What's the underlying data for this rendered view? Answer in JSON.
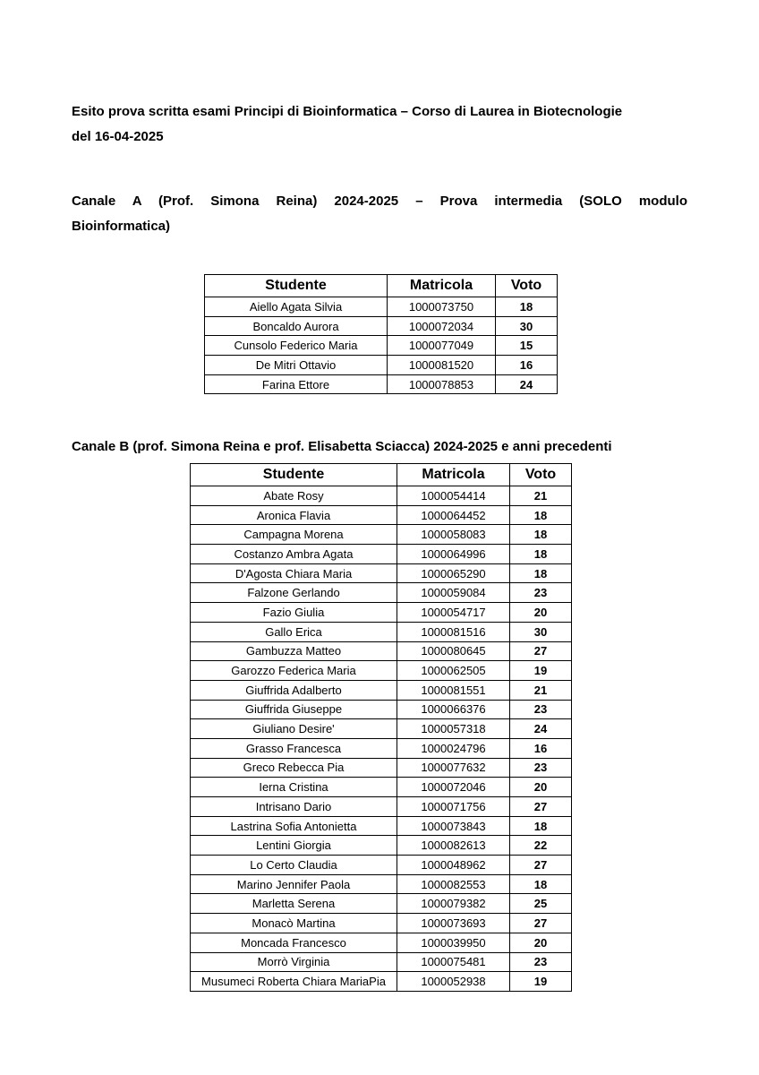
{
  "title": {
    "line1": "Esito prova scritta esami Principi di Bioinformatica – Corso di Laurea in Biotecnologie",
    "line2": "del 16-04-2025"
  },
  "section_a": {
    "heading_line1": "Canale A (Prof. Simona Reina) 2024-2025 – Prova intermedia (SOLO modulo",
    "heading_line2": "Bioinformatica)",
    "table": {
      "headers": [
        "Studente",
        "Matricola",
        "Voto"
      ],
      "rows": [
        {
          "studente": "Aiello Agata Silvia",
          "matricola": "1000073750",
          "voto": "18"
        },
        {
          "studente": "Boncaldo Aurora",
          "matricola": "1000072034",
          "voto": "30"
        },
        {
          "studente": "Cunsolo Federico Maria",
          "matricola": "1000077049",
          "voto": "15"
        },
        {
          "studente": "De Mitri Ottavio",
          "matricola": "1000081520",
          "voto": "16"
        },
        {
          "studente": "Farina Ettore",
          "matricola": "1000078853",
          "voto": "24"
        }
      ]
    }
  },
  "section_b": {
    "heading": "Canale B (prof. Simona Reina e prof. Elisabetta Sciacca) 2024-2025 e anni precedenti",
    "table": {
      "headers": [
        "Studente",
        "Matricola",
        "Voto"
      ],
      "rows": [
        {
          "studente": "Abate Rosy",
          "matricola": "1000054414",
          "voto": "21"
        },
        {
          "studente": "Aronica Flavia",
          "matricola": "1000064452",
          "voto": "18"
        },
        {
          "studente": "Campagna Morena",
          "matricola": "1000058083",
          "voto": "18"
        },
        {
          "studente": "Costanzo Ambra Agata",
          "matricola": "1000064996",
          "voto": "18"
        },
        {
          "studente": "D'Agosta Chiara Maria",
          "matricola": "1000065290",
          "voto": "18"
        },
        {
          "studente": "Falzone Gerlando",
          "matricola": "1000059084",
          "voto": "23"
        },
        {
          "studente": "Fazio Giulia",
          "matricola": "1000054717",
          "voto": "20"
        },
        {
          "studente": "Gallo Erica",
          "matricola": "1000081516",
          "voto": "30"
        },
        {
          "studente": "Gambuzza Matteo",
          "matricola": "1000080645",
          "voto": "27"
        },
        {
          "studente": "Garozzo Federica Maria",
          "matricola": "1000062505",
          "voto": "19"
        },
        {
          "studente": "Giuffrida Adalberto",
          "matricola": "1000081551",
          "voto": "21"
        },
        {
          "studente": "Giuffrida Giuseppe",
          "matricola": "1000066376",
          "voto": "23"
        },
        {
          "studente": "Giuliano Desire'",
          "matricola": "1000057318",
          "voto": "24"
        },
        {
          "studente": "Grasso Francesca",
          "matricola": "1000024796",
          "voto": "16"
        },
        {
          "studente": "Greco Rebecca Pia",
          "matricola": "1000077632",
          "voto": "23"
        },
        {
          "studente": "Ierna Cristina",
          "matricola": "1000072046",
          "voto": "20"
        },
        {
          "studente": "Intrisano Dario",
          "matricola": "1000071756",
          "voto": "27"
        },
        {
          "studente": "Lastrina Sofia Antonietta",
          "matricola": "1000073843",
          "voto": "18"
        },
        {
          "studente": "Lentini Giorgia",
          "matricola": "1000082613",
          "voto": "22"
        },
        {
          "studente": "Lo Certo Claudia",
          "matricola": "1000048962",
          "voto": "27"
        },
        {
          "studente": "Marino Jennifer Paola",
          "matricola": "1000082553",
          "voto": "18"
        },
        {
          "studente": "Marletta Serena",
          "matricola": "1000079382",
          "voto": "25"
        },
        {
          "studente": "Monacò Martina",
          "matricola": "1000073693",
          "voto": "27"
        },
        {
          "studente": "Moncada Francesco",
          "matricola": "1000039950",
          "voto": "20"
        },
        {
          "studente": "Morrò Virginia",
          "matricola": "1000075481",
          "voto": "23"
        },
        {
          "studente": "Musumeci Roberta Chiara MariaPia",
          "matricola": "1000052938",
          "voto": "19"
        }
      ]
    }
  },
  "colors": {
    "text": "#000000",
    "background": "#ffffff",
    "table_border": "#000000"
  }
}
